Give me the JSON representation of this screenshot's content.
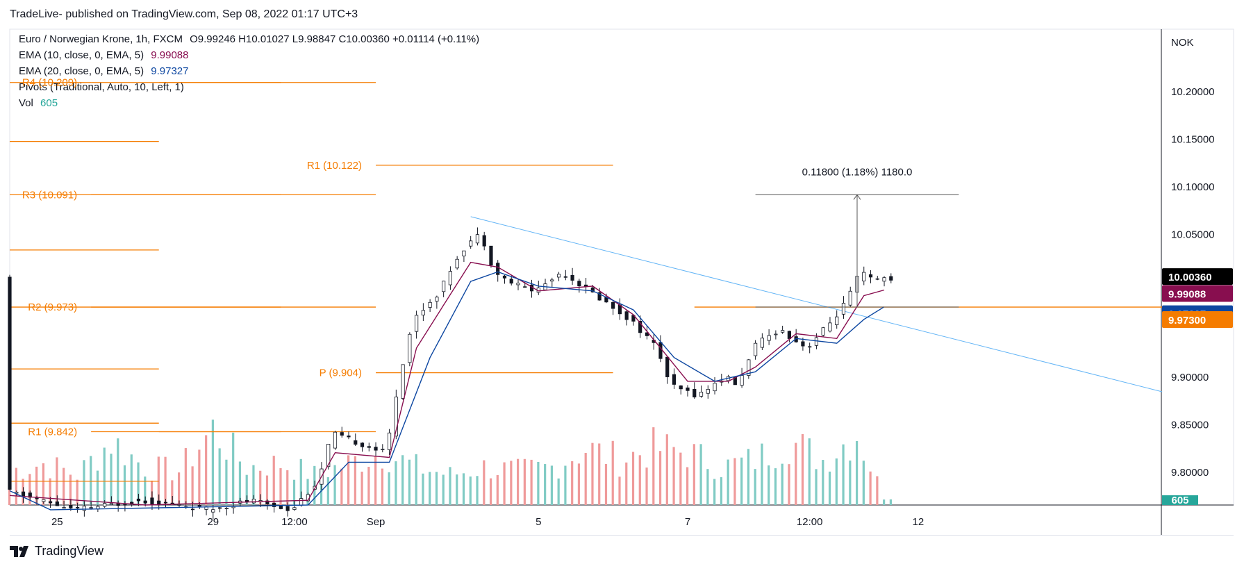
{
  "header": {
    "published": "TradeLive- published on TradingView.com, Sep 08, 2022 01:17 UTC+3"
  },
  "legend": {
    "symbol": "Euro / Norwegian Krone, 1h, FXCM",
    "ohlc": "O9.99246  H10.01027  L9.98847  C10.00360  +0.01114 (+0.11%)",
    "ema10_label": "EMA (10, close, 0, EMA, 5)",
    "ema10_value": "9.99088",
    "ema20_label": "EMA (20, close, 0, EMA, 5)",
    "ema20_value": "9.97327",
    "pivots_label": "Pivots (Traditional, Auto, 10, Left, 1)",
    "vol_label": "Vol",
    "vol_value": "605"
  },
  "footer": {
    "brand": "TradingView"
  },
  "colors": {
    "up": "#26a69a",
    "down": "#ef5350",
    "candle": "#131722",
    "ema10": "#880e4f",
    "ema20": "#0d47a1",
    "pivot": "#f57c00",
    "trend": "#64b5f6",
    "measure": "#555555"
  },
  "chart_data": {
    "type": "candlestick",
    "symbol": "EURNOK",
    "timeframe": "1h",
    "currency_label": "NOK",
    "y_ticks": [
      "10.20000",
      "10.15000",
      "10.10000",
      "10.05000",
      "9.90000",
      "9.85000",
      "9.80000"
    ],
    "ylim": [
      9.765,
      10.265
    ],
    "x_ticks": [
      {
        "label": "25",
        "index": 7
      },
      {
        "label": "29",
        "index": 30
      },
      {
        "label": "12:00",
        "index": 42
      },
      {
        "label": "Sep",
        "index": 54
      },
      {
        "label": "5",
        "index": 78
      },
      {
        "label": "7",
        "index": 100
      },
      {
        "label": "12:00",
        "index": 118
      },
      {
        "label": "12",
        "index": 134
      }
    ],
    "x_count": 170,
    "close_path": [
      [
        0,
        9.78
      ],
      [
        10,
        9.76
      ],
      [
        20,
        9.77
      ],
      [
        30,
        9.76
      ],
      [
        36,
        9.77
      ],
      [
        42,
        9.76
      ],
      [
        46,
        9.79
      ],
      [
        48,
        9.84
      ],
      [
        52,
        9.83
      ],
      [
        56,
        9.82
      ],
      [
        58,
        9.9
      ],
      [
        60,
        9.96
      ],
      [
        64,
        9.99
      ],
      [
        66,
        10.02
      ],
      [
        68,
        10.04
      ],
      [
        70,
        10.05
      ],
      [
        72,
        10.01
      ],
      [
        74,
        10.0
      ],
      [
        78,
        9.99
      ],
      [
        82,
        10.01
      ],
      [
        86,
        9.99
      ],
      [
        92,
        9.96
      ],
      [
        96,
        9.93
      ],
      [
        98,
        9.89
      ],
      [
        102,
        9.88
      ],
      [
        106,
        9.9
      ],
      [
        108,
        9.89
      ],
      [
        110,
        9.93
      ],
      [
        114,
        9.95
      ],
      [
        116,
        9.94
      ],
      [
        118,
        9.93
      ],
      [
        122,
        9.96
      ],
      [
        124,
        9.98
      ],
      [
        126,
        10.01
      ],
      [
        128,
        10.0
      ],
      [
        129,
        10.0036
      ]
    ],
    "ema10_path": [
      [
        0,
        9.775
      ],
      [
        20,
        9.765
      ],
      [
        44,
        9.77
      ],
      [
        48,
        9.82
      ],
      [
        56,
        9.815
      ],
      [
        60,
        9.93
      ],
      [
        64,
        9.975
      ],
      [
        68,
        10.02
      ],
      [
        72,
        10.015
      ],
      [
        78,
        9.99
      ],
      [
        86,
        9.995
      ],
      [
        92,
        9.965
      ],
      [
        96,
        9.93
      ],
      [
        100,
        9.895
      ],
      [
        106,
        9.895
      ],
      [
        110,
        9.91
      ],
      [
        116,
        9.945
      ],
      [
        122,
        9.94
      ],
      [
        126,
        9.985
      ],
      [
        129,
        9.99088
      ]
    ],
    "ema20_path": [
      [
        0,
        9.78
      ],
      [
        6,
        9.76
      ],
      [
        44,
        9.765
      ],
      [
        50,
        9.81
      ],
      [
        56,
        9.81
      ],
      [
        62,
        9.92
      ],
      [
        68,
        10.0
      ],
      [
        72,
        10.01
      ],
      [
        78,
        9.995
      ],
      [
        86,
        9.99
      ],
      [
        92,
        9.97
      ],
      [
        98,
        9.92
      ],
      [
        104,
        9.895
      ],
      [
        110,
        9.905
      ],
      [
        116,
        9.94
      ],
      [
        122,
        9.935
      ],
      [
        126,
        9.96
      ],
      [
        129,
        9.97327
      ]
    ],
    "volume_peaks": [
      [
        0,
        0.45
      ],
      [
        5,
        0.55
      ],
      [
        10,
        0.4
      ],
      [
        15,
        0.85
      ],
      [
        20,
        0.5
      ],
      [
        25,
        0.45
      ],
      [
        30,
        1.0
      ],
      [
        35,
        0.5
      ],
      [
        40,
        0.55
      ],
      [
        45,
        0.4
      ],
      [
        50,
        0.55
      ],
      [
        55,
        0.7
      ],
      [
        60,
        0.5
      ],
      [
        65,
        0.4
      ],
      [
        70,
        0.5
      ],
      [
        75,
        0.45
      ],
      [
        80,
        0.5
      ],
      [
        85,
        0.75
      ],
      [
        90,
        0.6
      ],
      [
        95,
        0.75
      ],
      [
        100,
        0.7
      ],
      [
        105,
        0.5
      ],
      [
        110,
        0.6
      ],
      [
        115,
        0.85
      ],
      [
        120,
        0.6
      ],
      [
        125,
        0.95
      ],
      [
        129,
        0.1
      ]
    ],
    "pivot_levels": [
      {
        "label": "R4 (10.209)",
        "value": 10.209,
        "x0": 12,
        "x1": 40
      },
      {
        "label": "R3 (10.091)",
        "value": 10.091,
        "x0": 12,
        "x1": 40
      },
      {
        "label": "R2 (9.973)",
        "value": 9.973,
        "x0": 12,
        "x1": 40
      },
      {
        "label": "R1 (9.842)",
        "value": 9.842,
        "x0": 12,
        "x1": 40
      },
      {
        "label": "R1 (10.122)",
        "value": 10.122,
        "x0": 54,
        "x1": 89
      },
      {
        "label": "P (9.904)",
        "value": 9.904,
        "x0": 54,
        "x1": 89
      }
    ],
    "pivot_lines_left": [
      {
        "value": 10.209,
        "x0": 0,
        "x1": 12
      },
      {
        "value": 10.147,
        "x0": 0,
        "x1": 22
      },
      {
        "value": 10.091,
        "x0": 0,
        "x1": 22
      },
      {
        "value": 10.033,
        "x0": 0,
        "x1": 22
      },
      {
        "value": 9.973,
        "x0": 0,
        "x1": 22
      },
      {
        "value": 9.908,
        "x0": 0,
        "x1": 22
      },
      {
        "value": 9.851,
        "x0": 0,
        "x1": 22
      },
      {
        "value": 9.79,
        "x0": 0,
        "x1": 22
      },
      {
        "value": 9.842,
        "x0": 22,
        "x1": 54
      },
      {
        "value": 10.091,
        "x0": 22,
        "x1": 54
      },
      {
        "value": 10.209,
        "x0": 22,
        "x1": 54
      },
      {
        "value": 9.973,
        "x0": 22,
        "x1": 54
      }
    ],
    "pivot_lines_right": [
      {
        "value": 9.973,
        "x0": 101,
        "x1": 170
      }
    ],
    "trendline": {
      "x0": 68,
      "y0": 10.068,
      "x1": 170,
      "y1": 9.884
    },
    "measure": {
      "x0": 110,
      "x1": 140,
      "xmid": 125,
      "y_base": 9.973,
      "y_top": 10.091,
      "label": "0.11800 (1.18%) 1180.0"
    },
    "price_badges": [
      {
        "value": "10.00360",
        "y": 10.0036,
        "bg": "#000000"
      },
      {
        "value": "9.99088",
        "y": 9.99088,
        "bg": "#880e4f"
      },
      {
        "value": "9.97327",
        "y": 9.97327,
        "bg": "#0d47a1"
      },
      {
        "value": "9.97300",
        "y": 9.973,
        "bg": "#f57c00"
      }
    ],
    "vol_badge": "605"
  }
}
